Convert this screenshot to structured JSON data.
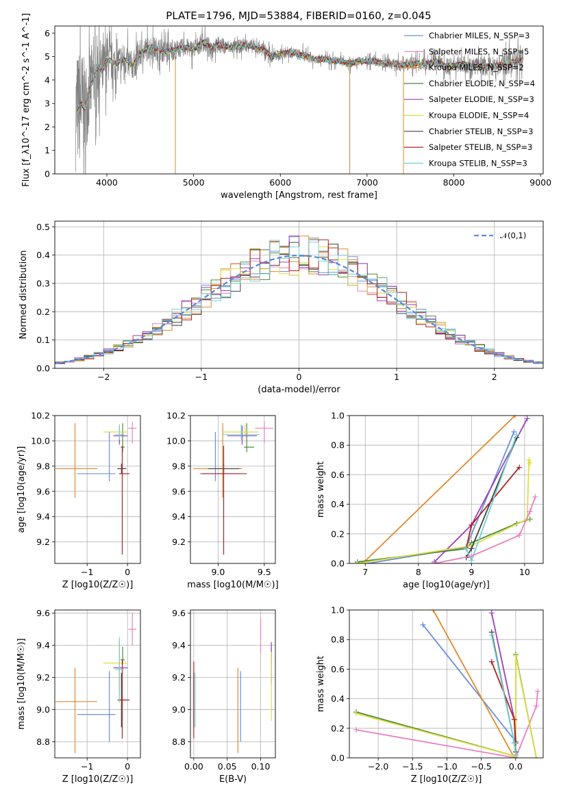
{
  "page_title": "PLATE=1796, MJD=53884, FIBERID=0160, z=0.045",
  "series_styles": [
    {
      "color": "#6a8fd8"
    },
    {
      "color": "#e87fbf"
    },
    {
      "color": "#e08a2a"
    },
    {
      "color": "#4a8a3a"
    },
    {
      "color": "#9a3fb8"
    },
    {
      "color": "#dede40"
    },
    {
      "color": "#404040"
    },
    {
      "color": "#b02020"
    },
    {
      "color": "#70d0d8"
    }
  ],
  "chart_data": [
    {
      "id": "spectrum",
      "type": "line",
      "title": "PLATE=1796, MJD=53884, FIBERID=0160, z=0.045",
      "xlabel": "wavelength [Angstrom, rest frame]",
      "ylabel": "Flux [f_λ10^-17 erg cm^-2 s^-1 A^-1]",
      "xlim": [
        3400,
        9030
      ],
      "ylim": [
        0,
        6.3
      ],
      "xticks": [
        4000,
        5000,
        6000,
        7000,
        8000,
        9000
      ],
      "yticks": [
        0,
        1,
        2,
        3,
        4,
        5,
        6
      ],
      "legend": "top-right",
      "observed_color": "#808080",
      "observed": {
        "x": [
          3650,
          3700,
          3750,
          3800,
          3850,
          3900,
          3950,
          4000,
          4100,
          4200,
          4300,
          4400,
          4500,
          4600,
          4700,
          4800,
          4900,
          5000,
          5100,
          5200,
          5300,
          5400,
          5500,
          5600,
          5700,
          5800,
          5900,
          6000,
          6100,
          6200,
          6300,
          6400,
          6500,
          6600,
          6700,
          6800,
          6900,
          7000,
          7100,
          7200,
          7300,
          7400,
          7500,
          7600,
          7700,
          7800,
          7900,
          8000,
          8100,
          8200,
          8300,
          8400,
          8500,
          8600,
          8700,
          8800
        ],
        "y": [
          2.6,
          3.0,
          2.8,
          3.6,
          4.1,
          4.6,
          4.4,
          4.9,
          4.7,
          4.9,
          4.6,
          5.2,
          5.4,
          5.3,
          5.2,
          5.3,
          5.4,
          5.3,
          5.6,
          5.4,
          5.5,
          5.4,
          5.4,
          5.5,
          5.4,
          5.3,
          5.0,
          5.1,
          5.2,
          5.1,
          5.0,
          4.9,
          4.9,
          4.8,
          4.8,
          4.7,
          4.8,
          4.8,
          4.8,
          4.7,
          4.7,
          4.6,
          4.7,
          4.7,
          4.7,
          4.8,
          4.6,
          4.6,
          4.7,
          4.6,
          4.6,
          4.6,
          4.6,
          4.7,
          4.8,
          4.9
        ],
        "noise": [
          2.5,
          2.5,
          2.0,
          1.8,
          1.6,
          1.4,
          1.2,
          1.0,
          0.8,
          0.7,
          0.6,
          0.6,
          0.5,
          0.5,
          0.5,
          0.4,
          0.4,
          0.4,
          0.4,
          0.35,
          0.35,
          0.3,
          0.3,
          0.3,
          0.3,
          0.3,
          0.25,
          0.25,
          0.25,
          0.25,
          0.25,
          0.2,
          0.2,
          0.2,
          0.2,
          0.2,
          0.2,
          0.2,
          0.2,
          0.2,
          0.25,
          0.25,
          0.3,
          0.3,
          0.3,
          0.3,
          0.35,
          0.35,
          0.35,
          0.4,
          0.4,
          0.45,
          0.45,
          0.5,
          0.5,
          0.5
        ]
      },
      "series": [
        {
          "name": "Chabrier MILES, N_SSP=3"
        },
        {
          "name": "Salpeter MILES, N_SSP=5"
        },
        {
          "name": "Kroupa MILES, N_SSP=2"
        },
        {
          "name": "Chabrier ELODIE, N_SSP=4"
        },
        {
          "name": "Salpeter ELODIE, N_SSP=3"
        },
        {
          "name": "Kroupa ELODIE, N_SSP=4"
        },
        {
          "name": "Chabrier STELIB, N_SSP=3"
        },
        {
          "name": "Salpeter STELIB, N_SSP=3"
        },
        {
          "name": "Kroupa STELIB, N_SSP=3"
        }
      ]
    },
    {
      "id": "residuals",
      "type": "line",
      "xlabel": "(data-model)/error",
      "ylabel": "Normed distribution",
      "xlim": [
        -2.5,
        2.5
      ],
      "ylim": [
        0,
        0.52
      ],
      "xticks": [
        -2,
        -1,
        0,
        1,
        2
      ],
      "yticks": [
        0,
        0.1,
        0.2,
        0.3,
        0.4,
        0.5
      ],
      "grid": true,
      "legend": "top-right",
      "gauss_label": "𝒩(0,1)",
      "gauss_color": "#5a8ad8",
      "bin_width": 0.1
    },
    {
      "id": "age_vs_Z",
      "type": "scatter",
      "xlabel": "Z [log10(Z/Z☉)]",
      "ylabel": "age  [log10(age/yr)]",
      "xlim": [
        -1.8,
        0.32
      ],
      "ylim": [
        9.03,
        10.2
      ],
      "xticks": [
        -1,
        0
      ],
      "yticks": [
        9.2,
        9.4,
        9.6,
        9.8,
        10.0,
        10.2
      ],
      "grid": true,
      "points": [
        {
          "x": -0.45,
          "y": 9.74,
          "xerr": [
            0.8,
            0.15
          ],
          "yerr": [
            0.06,
            0.33
          ],
          "color": "#6a8fd8"
        },
        {
          "x": 0.12,
          "y": 10.1,
          "xerr": [
            0.1,
            0.1
          ],
          "yerr": [
            0.12,
            0.05
          ],
          "color": "#e87fbf"
        },
        {
          "x": -1.3,
          "y": 9.78,
          "xerr": [
            0.48,
            0.55
          ],
          "yerr": [
            0.23,
            0.36
          ],
          "color": "#e08a2a"
        },
        {
          "x": -0.12,
          "y": 9.95,
          "xerr": [
            0.05,
            0.05
          ],
          "yerr": [
            0.04,
            0.19
          ],
          "color": "#4a8a3a"
        },
        {
          "x": -0.2,
          "y": 10.04,
          "xerr": [
            0.15,
            0.2
          ],
          "yerr": [
            0.07,
            0.08
          ],
          "color": "#9a3fb8"
        },
        {
          "x": -0.2,
          "y": 10.07,
          "xerr": [
            0.4,
            0.2
          ],
          "yerr": [
            0.03,
            0.06
          ],
          "color": "#dede40"
        },
        {
          "x": -0.15,
          "y": 9.78,
          "xerr": [
            0.1,
            0.12
          ],
          "yerr": [
            0.04,
            0.04
          ],
          "color": "#404040"
        },
        {
          "x": -0.13,
          "y": 9.74,
          "xerr": [
            0.08,
            0.18
          ],
          "yerr": [
            0.64,
            0.22
          ],
          "color": "#b02020"
        },
        {
          "x": -0.2,
          "y": 10.05,
          "xerr": [
            0.1,
            0.12
          ],
          "yerr": [
            0.04,
            0.08
          ],
          "color": "#70d0d8"
        }
      ]
    },
    {
      "id": "age_vs_mass",
      "type": "scatter",
      "xlabel": "mass [log10(M/M☉)]",
      "ylabel": "",
      "xlim": [
        8.7,
        9.62
      ],
      "ylim": [
        9.03,
        10.2
      ],
      "xticks": [
        9.0,
        9.5
      ],
      "yticks": [
        9.2,
        9.4,
        9.6,
        9.8,
        10.0,
        10.2
      ],
      "grid": true,
      "points": [
        {
          "x": 8.97,
          "y": 9.74,
          "xerr": [
            0.17,
            0.27
          ],
          "yerr": [
            0.06,
            0.33
          ],
          "color": "#6a8fd8"
        },
        {
          "x": 9.5,
          "y": 10.1,
          "xerr": [
            0.1,
            0.1
          ],
          "yerr": [
            0.12,
            0.05
          ],
          "color": "#e87fbf"
        },
        {
          "x": 9.05,
          "y": 9.78,
          "xerr": [
            0.32,
            0.21
          ],
          "yerr": [
            0.23,
            0.36
          ],
          "color": "#e08a2a"
        },
        {
          "x": 9.31,
          "y": 9.95,
          "xerr": [
            0.03,
            0.08
          ],
          "yerr": [
            0.04,
            0.19
          ],
          "color": "#4a8a3a"
        },
        {
          "x": 9.26,
          "y": 10.04,
          "xerr": [
            0.16,
            0.16
          ],
          "yerr": [
            0.07,
            0.08
          ],
          "color": "#9a3fb8"
        },
        {
          "x": 9.29,
          "y": 10.07,
          "xerr": [
            0.25,
            0.15
          ],
          "yerr": [
            0.03,
            0.06
          ],
          "color": "#dede40"
        },
        {
          "x": 9.06,
          "y": 9.78,
          "xerr": [
            0.17,
            0.17
          ],
          "yerr": [
            0.04,
            0.04
          ],
          "color": "#404040"
        },
        {
          "x": 9.06,
          "y": 9.74,
          "xerr": [
            0.24,
            0.25
          ],
          "yerr": [
            0.64,
            0.22
          ],
          "color": "#b02020"
        },
        {
          "x": 9.25,
          "y": 10.05,
          "xerr": [
            0.2,
            0.2
          ],
          "yerr": [
            0.04,
            0.08
          ],
          "color": "#70d0d8"
        }
      ]
    },
    {
      "id": "weight_vs_age",
      "type": "line",
      "xlabel": "age  [log10(age/yr)]",
      "ylabel": "mass weight",
      "xlim": [
        6.7,
        10.35
      ],
      "ylim": [
        0,
        1.0
      ],
      "xticks": [
        7,
        8,
        9,
        10
      ],
      "yticks": [
        0,
        0.2,
        0.4,
        0.6,
        0.8,
        1.0
      ],
      "grid": true,
      "series": [
        {
          "x": [
            7.05,
            8.9,
            9.8
          ],
          "y": [
            0.0,
            0.11,
            0.89
          ],
          "color": "#6a8fd8"
        },
        {
          "x": 8.3,
          "y": 0,
          "color": "#e87fbf"
        },
        {
          "x": [
            6.95,
            9.82
          ],
          "y": [
            0.0,
            1.0
          ],
          "color": "#e08a2a"
        },
        {
          "x": [
            6.85,
            8.9,
            9.0,
            9.85,
            10.1
          ],
          "y": [
            0.01,
            0.1,
            0.14,
            0.27,
            0.3
          ],
          "color": "#4a8a3a"
        },
        {
          "x": [
            8.3,
            9.0,
            10.05
          ],
          "y": [
            0.01,
            0.26,
            0.98
          ],
          "color": "#9a3fb8"
        },
        {
          "x": [
            6.85,
            9.0,
            10.05,
            10.08,
            10.1
          ],
          "y": [
            0.0,
            0.12,
            0.3,
            0.7,
            0.68
          ],
          "color": "#dede40"
        },
        {
          "x": [
            8.9,
            9.0,
            9.85
          ],
          "y": [
            0.04,
            0.1,
            0.85
          ],
          "color": "#404040"
        },
        {
          "x": [
            8.9,
            9.0,
            9.9
          ],
          "y": [
            0.1,
            0.26,
            0.65
          ],
          "color": "#b02020"
        },
        {
          "x": [
            8.9,
            9.0,
            9.85
          ],
          "y": [
            0.1,
            0.02,
            0.87
          ],
          "color": "#70d0d8"
        }
      ],
      "extra": [
        {
          "x": [
            8.3,
            9.0,
            9.9,
            10.1,
            10.2
          ],
          "y": [
            0.0,
            0.05,
            0.19,
            0.35,
            0.45
          ],
          "color": "#e87fbf"
        }
      ]
    },
    {
      "id": "mass_vs_Z",
      "type": "scatter",
      "xlabel": "Z [log10(Z/Z☉)]",
      "ylabel": "mass [log10(M/M☉)]",
      "xlim": [
        -1.8,
        0.32
      ],
      "ylim": [
        8.7,
        9.62
      ],
      "xticks": [
        -1,
        0
      ],
      "yticks": [
        8.8,
        9.0,
        9.2,
        9.4,
        9.6
      ],
      "grid": true,
      "points": [
        {
          "x": -0.45,
          "y": 8.97,
          "xerr": [
            0.8,
            0.15
          ],
          "yerr": [
            0.17,
            0.27
          ],
          "color": "#6a8fd8"
        },
        {
          "x": 0.12,
          "y": 9.5,
          "xerr": [
            0.1,
            0.1
          ],
          "yerr": [
            0.1,
            0.1
          ],
          "color": "#e87fbf"
        },
        {
          "x": -1.3,
          "y": 9.05,
          "xerr": [
            0.48,
            0.55
          ],
          "yerr": [
            0.32,
            0.21
          ],
          "color": "#e08a2a"
        },
        {
          "x": -0.12,
          "y": 9.31,
          "xerr": [
            0.05,
            0.05
          ],
          "yerr": [
            0.03,
            0.08
          ],
          "color": "#4a8a3a"
        },
        {
          "x": -0.2,
          "y": 9.26,
          "xerr": [
            0.15,
            0.2
          ],
          "yerr": [
            0.16,
            0.16
          ],
          "color": "#9a3fb8"
        },
        {
          "x": -0.2,
          "y": 9.29,
          "xerr": [
            0.4,
            0.2
          ],
          "yerr": [
            0.25,
            0.15
          ],
          "color": "#dede40"
        },
        {
          "x": -0.15,
          "y": 9.06,
          "xerr": [
            0.1,
            0.12
          ],
          "yerr": [
            0.17,
            0.17
          ],
          "color": "#404040"
        },
        {
          "x": -0.13,
          "y": 9.06,
          "xerr": [
            0.08,
            0.18
          ],
          "yerr": [
            0.24,
            0.25
          ],
          "color": "#b02020"
        },
        {
          "x": -0.2,
          "y": 9.25,
          "xerr": [
            0.1,
            0.12
          ],
          "yerr": [
            0.2,
            0.2
          ],
          "color": "#70d0d8"
        }
      ]
    },
    {
      "id": "mass_vs_EBV",
      "type": "scatter",
      "xlabel": "E(B-V)",
      "ylabel": "",
      "xlim": [
        -0.005,
        0.122
      ],
      "ylim": [
        8.7,
        9.62
      ],
      "xticks": [
        0.0,
        0.05,
        0.1
      ],
      "yticks": [
        8.8,
        9.0,
        9.2,
        9.4,
        9.6
      ],
      "grid": true,
      "points": [
        {
          "x": 0.07,
          "y": 8.97,
          "yerr": [
            0.17,
            0.27
          ],
          "color": "#6a8fd8"
        },
        {
          "x": 0.1,
          "y": 9.45,
          "yerr": [
            0.1,
            0.12
          ],
          "color": "#e87fbf"
        },
        {
          "x": 0.066,
          "y": 9.0,
          "yerr": [
            0.27,
            0.26
          ],
          "color": "#e08a2a"
        },
        {
          "x": 0.116,
          "y": 9.31,
          "yerr": [
            0.03,
            0.08
          ],
          "color": "#4a8a3a"
        },
        {
          "x": 0.116,
          "y": 9.3,
          "yerr": [
            0.14,
            0.12
          ],
          "color": "#9a3fb8"
        },
        {
          "x": 0.116,
          "y": 9.15,
          "yerr": [
            0.22,
            0.21
          ],
          "color": "#dede40"
        },
        {
          "x": 0.0,
          "y": 9.06,
          "yerr": [
            0.17,
            0.17
          ],
          "color": "#404040"
        },
        {
          "x": 0.0,
          "y": 9.06,
          "yerr": [
            0.24,
            0.24
          ],
          "color": "#b02020"
        },
        {
          "x": 0.002,
          "y": 9.05,
          "yerr": [
            0.16,
            0.18
          ],
          "color": "#70d0d8"
        }
      ]
    },
    {
      "id": "weight_vs_Z",
      "type": "line",
      "xlabel": "Z [log10(Z/Z☉)]",
      "ylabel": "mass weight",
      "xlim": [
        -2.42,
        0.4
      ],
      "ylim": [
        0,
        1.0
      ],
      "xticks": [
        -2.0,
        -1.5,
        -1.0,
        -0.5,
        0.0
      ],
      "yticks": [
        0,
        0.2,
        0.4,
        0.6,
        0.8,
        1.0
      ],
      "grid": true,
      "series": [
        {
          "x": [
            -1.35,
            0.0,
            0.0
          ],
          "y": [
            0.9,
            0.11,
            0.0
          ],
          "color": "#6a8fd8"
        },
        {
          "x": [
            -2.32,
            0.0,
            0.3,
            0.32
          ],
          "y": [
            0.19,
            0.0,
            0.35,
            0.45
          ],
          "color": "#e87fbf"
        },
        {
          "x": [
            -1.2,
            -0.02
          ],
          "y": [
            1.0,
            0.0
          ],
          "color": "#e08a2a"
        },
        {
          "x": [
            -2.32,
            0.0,
            0.0,
            0.3
          ],
          "y": [
            0.31,
            0.01,
            0.7,
            0.0
          ],
          "color": "#4a8a3a"
        },
        {
          "x": [
            -0.35,
            -0.02,
            0.0
          ],
          "y": [
            0.98,
            0.26,
            0.0
          ],
          "color": "#9a3fb8"
        },
        {
          "x": [
            -2.32,
            0.0,
            0.0,
            0.3
          ],
          "y": [
            0.3,
            0.01,
            0.69,
            0.0
          ],
          "color": "#dede40"
        },
        {
          "x": [
            -0.35,
            -0.02,
            0.0
          ],
          "y": [
            0.85,
            0.1,
            0.04
          ],
          "color": "#404040"
        },
        {
          "x": [
            -0.35,
            -0.02,
            0.0
          ],
          "y": [
            0.65,
            0.26,
            0.1
          ],
          "color": "#b02020"
        },
        {
          "x": [
            -0.35,
            -0.02,
            0.0
          ],
          "y": [
            0.83,
            0.1,
            0.02
          ],
          "color": "#70d0d8"
        }
      ]
    }
  ]
}
